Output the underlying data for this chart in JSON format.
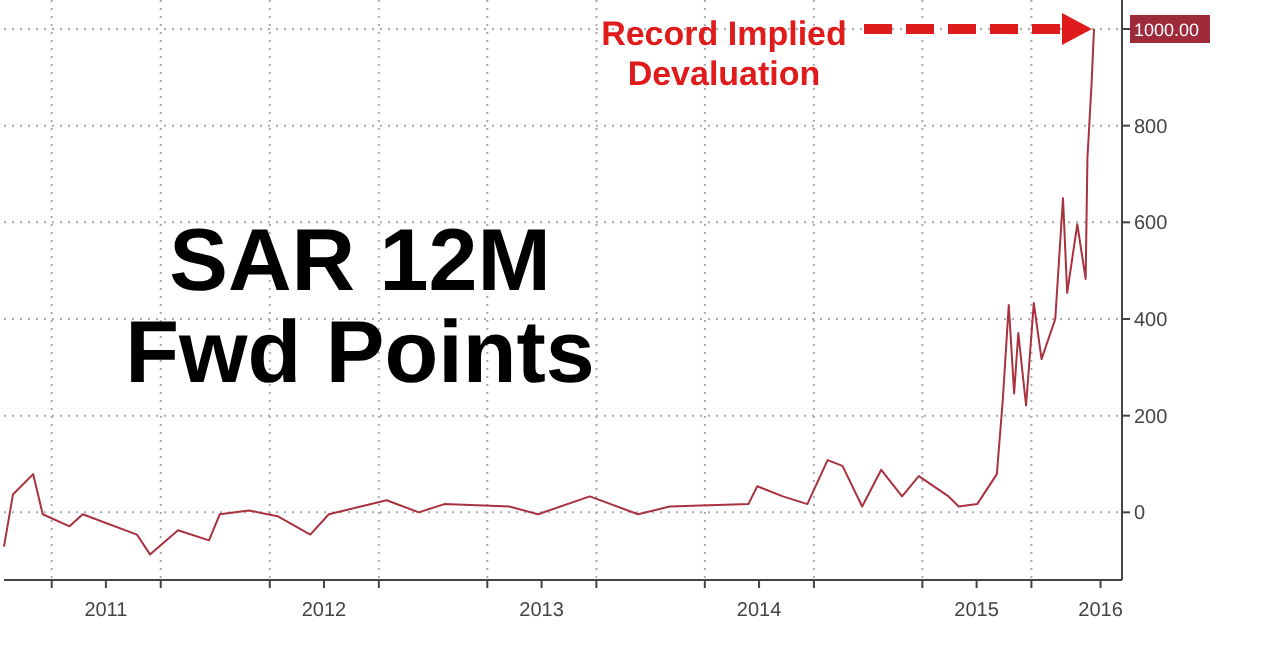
{
  "chart_data": {
    "type": "line",
    "title": "SAR 12M Fwd Points",
    "x": [
      "2011-01-11",
      "2011-01-26",
      "2011-03-01",
      "2011-03-17",
      "2011-05-01",
      "2011-05-23",
      "2011-08-22",
      "2011-09-13",
      "2011-10-30",
      "2011-12-21",
      "2012-01-08",
      "2012-02-26",
      "2012-04-14",
      "2012-06-08",
      "2012-07-09",
      "2012-10-14",
      "2012-12-07",
      "2013-01-19",
      "2013-05-08",
      "2013-06-25",
      "2013-09-20",
      "2013-12-10",
      "2014-02-01",
      "2014-06-13",
      "2014-06-28",
      "2014-08-10",
      "2014-09-20",
      "2014-10-24",
      "2014-11-18",
      "2014-12-21",
      "2015-01-22",
      "2015-02-26",
      "2015-03-26",
      "2015-05-15",
      "2015-06-01",
      "2015-07-02",
      "2015-08-04",
      "2015-08-14",
      "2015-08-24",
      "2015-09-02",
      "2015-09-09",
      "2015-09-22",
      "2015-10-05",
      "2015-10-18",
      "2015-11-10",
      "2015-11-23",
      "2015-11-30",
      "2015-12-17",
      "2015-12-31",
      "2016-01-03",
      "2016-01-10",
      "2016-01-14"
    ],
    "series": [
      {
        "color": "#a8323f",
        "values": [
          -71,
          37,
          79,
          -4,
          -29,
          -4,
          -46,
          -87,
          -37,
          -58,
          -4,
          4,
          -8,
          -46,
          -4,
          25,
          0,
          17,
          12,
          -4,
          33,
          -4,
          12,
          17,
          54,
          33,
          17,
          108,
          96,
          12,
          88,
          33,
          75,
          33,
          12,
          17,
          79,
          233,
          429,
          246,
          371,
          221,
          433,
          317,
          400,
          650,
          454,
          596,
          483,
          733,
          888,
          1000
        ]
      }
    ],
    "xlim": [
      "2011-01-11",
      "2016-03-01"
    ],
    "xticks": [
      {
        "value": "2011-04-01",
        "label": null
      },
      {
        "value": "2011-07-01",
        "label": "2011"
      },
      {
        "value": "2011-10-01",
        "label": null
      },
      {
        "value": "2012-04-01",
        "label": null
      },
      {
        "value": "2012-07-01",
        "label": "2012"
      },
      {
        "value": "2012-10-01",
        "label": null
      },
      {
        "value": "2013-04-01",
        "label": null
      },
      {
        "value": "2013-07-01",
        "label": "2013"
      },
      {
        "value": "2013-10-01",
        "label": null
      },
      {
        "value": "2014-04-01",
        "label": null
      },
      {
        "value": "2014-07-01",
        "label": "2014"
      },
      {
        "value": "2014-10-01",
        "label": null
      },
      {
        "value": "2015-04-01",
        "label": null
      },
      {
        "value": "2015-07-01",
        "label": "2015"
      },
      {
        "value": "2015-10-01",
        "label": null
      },
      {
        "value": "2016-01-25",
        "label": "2016"
      }
    ],
    "ylim": [
      -140,
      1060
    ],
    "yticks": [
      0,
      200,
      400,
      600,
      800,
      {
        "value": 1000,
        "label": "1000.00"
      }
    ],
    "grid": true,
    "annotations": [
      "Record Implied Devaluation"
    ]
  }
}
